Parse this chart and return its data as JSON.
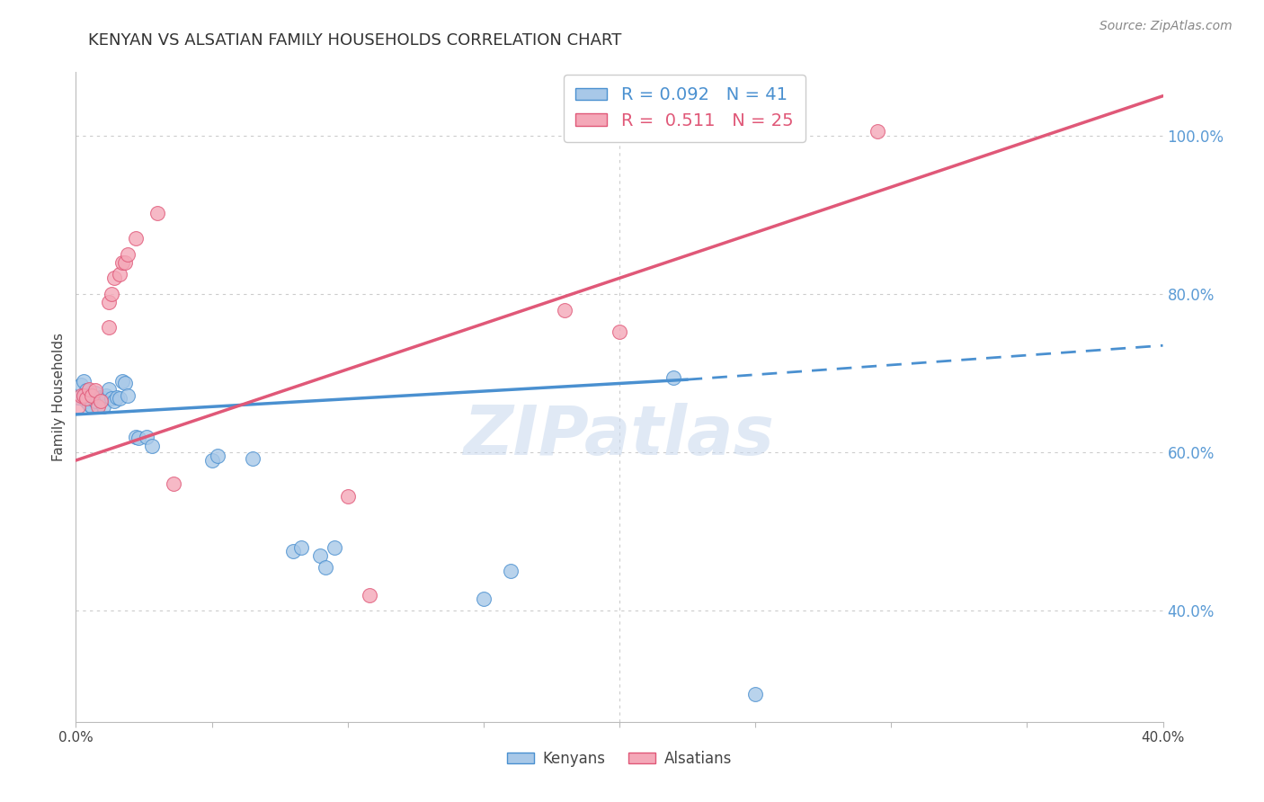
{
  "title": "KENYAN VS ALSATIAN FAMILY HOUSEHOLDS CORRELATION CHART",
  "source": "Source: ZipAtlas.com",
  "ylabel": "Family Households",
  "y_tick_labels": [
    "100.0%",
    "80.0%",
    "60.0%",
    "40.0%"
  ],
  "y_tick_values": [
    1.0,
    0.8,
    0.6,
    0.4
  ],
  "xlim": [
    0.0,
    0.4
  ],
  "ylim": [
    0.26,
    1.08
  ],
  "kenyan_R": "0.092",
  "kenyan_N": "41",
  "alsatian_R": "0.511",
  "alsatian_N": "25",
  "kenyan_color": "#a8c8e8",
  "alsatian_color": "#f4a8b8",
  "kenyan_line_color": "#4a90d0",
  "alsatian_line_color": "#e05878",
  "kenyan_scatter": [
    [
      0.001,
      0.67
    ],
    [
      0.002,
      0.685
    ],
    [
      0.003,
      0.69
    ],
    [
      0.003,
      0.672
    ],
    [
      0.004,
      0.678
    ],
    [
      0.004,
      0.665
    ],
    [
      0.005,
      0.672
    ],
    [
      0.005,
      0.66
    ],
    [
      0.006,
      0.668
    ],
    [
      0.006,
      0.658
    ],
    [
      0.007,
      0.675
    ],
    [
      0.007,
      0.665
    ],
    [
      0.008,
      0.668
    ],
    [
      0.009,
      0.67
    ],
    [
      0.01,
      0.668
    ],
    [
      0.01,
      0.658
    ],
    [
      0.011,
      0.672
    ],
    [
      0.012,
      0.68
    ],
    [
      0.013,
      0.668
    ],
    [
      0.014,
      0.665
    ],
    [
      0.015,
      0.67
    ],
    [
      0.016,
      0.668
    ],
    [
      0.017,
      0.69
    ],
    [
      0.018,
      0.688
    ],
    [
      0.019,
      0.672
    ],
    [
      0.022,
      0.62
    ],
    [
      0.023,
      0.618
    ],
    [
      0.026,
      0.62
    ],
    [
      0.028,
      0.608
    ],
    [
      0.05,
      0.59
    ],
    [
      0.052,
      0.596
    ],
    [
      0.065,
      0.592
    ],
    [
      0.08,
      0.475
    ],
    [
      0.083,
      0.48
    ],
    [
      0.09,
      0.47
    ],
    [
      0.092,
      0.455
    ],
    [
      0.095,
      0.48
    ],
    [
      0.15,
      0.415
    ],
    [
      0.16,
      0.45
    ],
    [
      0.22,
      0.695
    ],
    [
      0.25,
      0.295
    ]
  ],
  "alsatian_scatter": [
    [
      0.001,
      0.658
    ],
    [
      0.002,
      0.672
    ],
    [
      0.003,
      0.672
    ],
    [
      0.004,
      0.668
    ],
    [
      0.005,
      0.68
    ],
    [
      0.006,
      0.672
    ],
    [
      0.007,
      0.678
    ],
    [
      0.008,
      0.658
    ],
    [
      0.009,
      0.665
    ],
    [
      0.012,
      0.79
    ],
    [
      0.013,
      0.8
    ],
    [
      0.014,
      0.82
    ],
    [
      0.016,
      0.825
    ],
    [
      0.017,
      0.84
    ],
    [
      0.018,
      0.84
    ],
    [
      0.019,
      0.85
    ],
    [
      0.022,
      0.87
    ],
    [
      0.03,
      0.902
    ],
    [
      0.036,
      0.56
    ],
    [
      0.1,
      0.545
    ],
    [
      0.108,
      0.42
    ],
    [
      0.18,
      0.78
    ],
    [
      0.2,
      0.752
    ],
    [
      0.295,
      1.005
    ],
    [
      0.012,
      0.758
    ]
  ],
  "kenyan_solid_line": {
    "x0": 0.0,
    "x1": 0.225,
    "y0": 0.648,
    "y1": 0.692
  },
  "kenyan_dashed_line": {
    "x0": 0.225,
    "x1": 0.4,
    "y0": 0.692,
    "y1": 0.735
  },
  "alsatian_solid_line": {
    "x0": 0.0,
    "x1": 0.4,
    "y0": 0.59,
    "y1": 1.05
  },
  "watermark": "ZIPatlas",
  "background_color": "#ffffff",
  "grid_color": "#cccccc"
}
